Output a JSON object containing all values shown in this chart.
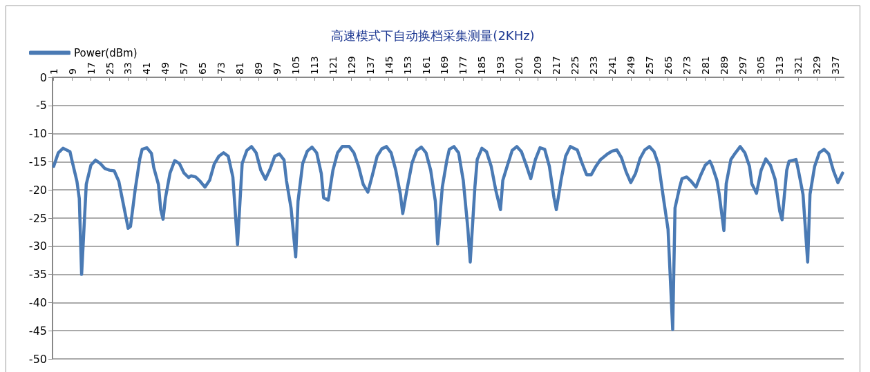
{
  "chart_data": {
    "type": "line",
    "title": "高速模式下自动换档采集测量(2KHz)",
    "series": [
      {
        "name": "Power(dBm)",
        "color": "#4a7ab4",
        "x": [
          1,
          3,
          5,
          8,
          9,
          11,
          12,
          13,
          15,
          17,
          19,
          21,
          23,
          25,
          27,
          29,
          33,
          34,
          36,
          38,
          39,
          41,
          43,
          44,
          46,
          47,
          48,
          49,
          51,
          53,
          55,
          57,
          59,
          60,
          62,
          64,
          66,
          68,
          70,
          72,
          74,
          76,
          78,
          80,
          82,
          84,
          86,
          88,
          90,
          92,
          94,
          96,
          98,
          100,
          101,
          103,
          105,
          106,
          108,
          110,
          112,
          114,
          116,
          117,
          119,
          121,
          123,
          125,
          128,
          130,
          132,
          134,
          136,
          138,
          140,
          142,
          144,
          146,
          148,
          150,
          151,
          153,
          155,
          157,
          159,
          161,
          163,
          165,
          166,
          168,
          170,
          171,
          173,
          175,
          177,
          179,
          180,
          182,
          183,
          185,
          187,
          189,
          191,
          193,
          194,
          196,
          198,
          200,
          202,
          204,
          206,
          208,
          210,
          212,
          214,
          216,
          217,
          219,
          221,
          223,
          226,
          228,
          230,
          232,
          234,
          236,
          239,
          241,
          243,
          245,
          247,
          249,
          251,
          253,
          255,
          257,
          259,
          261,
          263,
          265,
          267,
          268,
          270,
          271,
          273,
          275,
          277,
          279,
          281,
          283,
          284,
          286,
          287,
          289,
          290,
          292,
          294,
          296,
          298,
          300,
          301,
          303,
          305,
          307,
          309,
          311,
          313,
          314,
          316,
          317,
          320,
          321,
          323,
          325,
          326,
          328,
          330,
          332,
          334,
          336,
          338,
          340
        ],
        "values": [
          -15.8,
          -13.4,
          -12.6,
          -13.2,
          -15,
          -18.5,
          -21.5,
          -35,
          -19,
          -15.6,
          -14.7,
          -15.3,
          -16.2,
          -16.5,
          -16.6,
          -18.5,
          -26.8,
          -26.5,
          -20,
          -14.5,
          -12.8,
          -12.5,
          -13.5,
          -16,
          -19,
          -23.5,
          -25.2,
          -21.5,
          -17,
          -14.8,
          -15.3,
          -17,
          -17.8,
          -17.5,
          -17.7,
          -18.5,
          -19.5,
          -18.3,
          -15.4,
          -14,
          -13.4,
          -14,
          -17.7,
          -29.7,
          -15.3,
          -13,
          -12.3,
          -13.4,
          -16.5,
          -18.1,
          -16.3,
          -14,
          -13.6,
          -14.7,
          -18.3,
          -23.2,
          -31.9,
          -22,
          -15.3,
          -13.1,
          -12.4,
          -13.4,
          -17.1,
          -21.4,
          -21.8,
          -16.5,
          -13.4,
          -12.3,
          -12.3,
          -13.4,
          -15.8,
          -19,
          -20.4,
          -17.3,
          -14,
          -12.7,
          -12.3,
          -13.4,
          -16.5,
          -20.8,
          -24.2,
          -19.5,
          -15.2,
          -13,
          -12.4,
          -13.4,
          -16.5,
          -22,
          -29.6,
          -19.5,
          -14.6,
          -12.8,
          -12.3,
          -13.4,
          -18.3,
          -27,
          -32.8,
          -19.5,
          -14.6,
          -12.6,
          -13.2,
          -15.8,
          -20.1,
          -23.5,
          -18.3,
          -15.6,
          -13,
          -12.3,
          -13.2,
          -15.5,
          -18,
          -14.6,
          -12.5,
          -12.8,
          -15.8,
          -21.4,
          -23.5,
          -18.3,
          -14,
          -12.3,
          -12.9,
          -15.2,
          -17.3,
          -17.3,
          -15.8,
          -14.6,
          -13.6,
          -13.1,
          -12.9,
          -14.3,
          -16.8,
          -18.7,
          -17.1,
          -14.4,
          -12.9,
          -12.3,
          -13.2,
          -15.6,
          -21.4,
          -27,
          -44.8,
          -23.2,
          -19.5,
          -18,
          -17.7,
          -18.5,
          -19.5,
          -17.4,
          -15.6,
          -14.9,
          -15.8,
          -18.3,
          -20.8,
          -27.2,
          -18.9,
          -14.6,
          -13.4,
          -12.3,
          -13.4,
          -15.8,
          -18.9,
          -20.6,
          -16.5,
          -14.5,
          -15.6,
          -18.1,
          -23.8,
          -25.3,
          -16.5,
          -14.9,
          -14.6,
          -16.5,
          -20.8,
          -32.8,
          -20.8,
          -15.8,
          -13.4,
          -12.8,
          -13.6,
          -16.5,
          -18.7,
          -17
        ]
      }
    ],
    "xlim": [
      0.5,
      340.5
    ],
    "xticks": [
      1,
      9,
      17,
      25,
      33,
      41,
      49,
      57,
      65,
      73,
      81,
      89,
      97,
      105,
      113,
      121,
      129,
      137,
      145,
      153,
      161,
      169,
      177,
      185,
      193,
      201,
      209,
      217,
      225,
      233,
      241,
      249,
      257,
      265,
      273,
      281,
      289,
      297,
      305,
      313,
      321,
      329,
      337
    ],
    "ylim": [
      -50,
      0
    ],
    "yticks": [
      0,
      -5,
      -10,
      -15,
      -20,
      -25,
      -30,
      -35,
      -40,
      -45,
      -50
    ],
    "grid": "y",
    "legend": "top left",
    "marker": "none",
    "line_style": "solid"
  }
}
